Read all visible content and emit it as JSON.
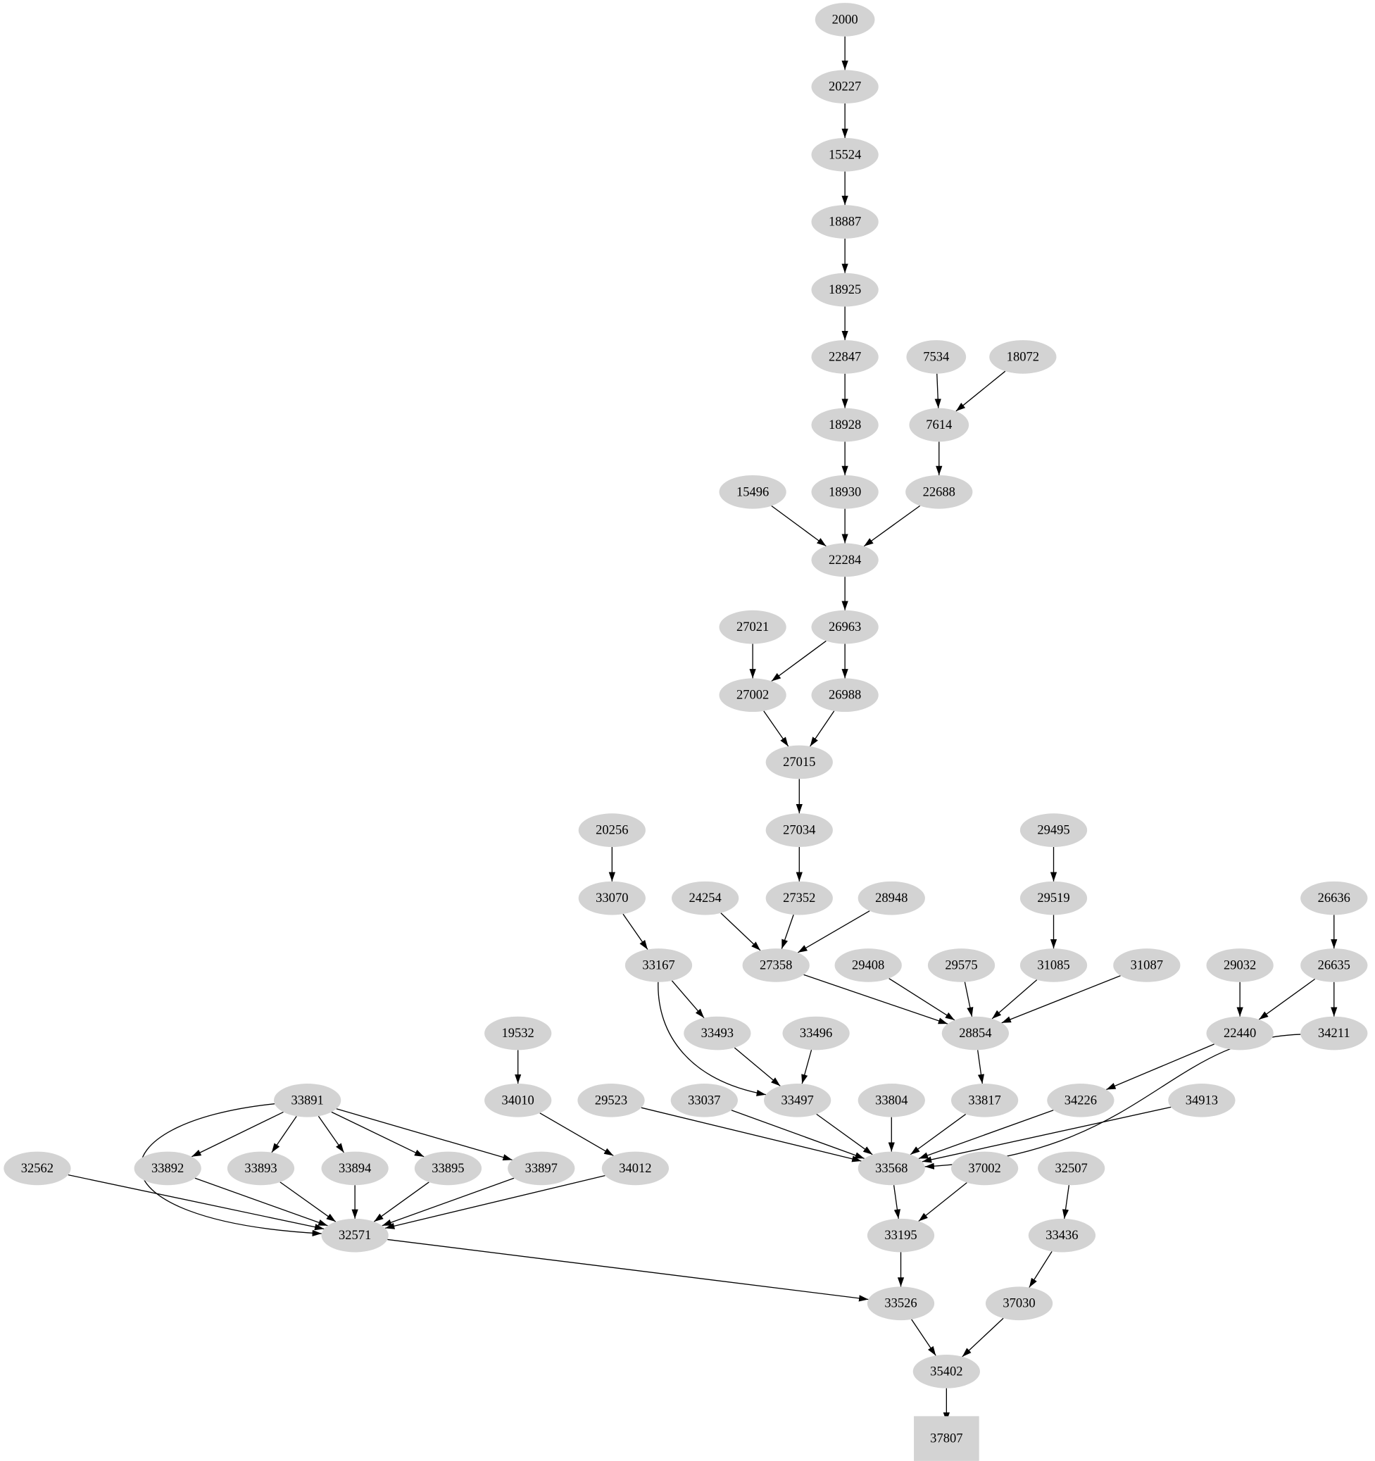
{
  "graph": {
    "node_color": "#d3d3d3",
    "edge_color": "#000000",
    "nodes": [
      {
        "id": "2000",
        "shape": "ellipse"
      },
      {
        "id": "20227",
        "shape": "ellipse"
      },
      {
        "id": "15524",
        "shape": "ellipse"
      },
      {
        "id": "18887",
        "shape": "ellipse"
      },
      {
        "id": "18925",
        "shape": "ellipse"
      },
      {
        "id": "22847",
        "shape": "ellipse"
      },
      {
        "id": "7534",
        "shape": "ellipse"
      },
      {
        "id": "18072",
        "shape": "ellipse"
      },
      {
        "id": "18928",
        "shape": "ellipse"
      },
      {
        "id": "7614",
        "shape": "ellipse"
      },
      {
        "id": "15496",
        "shape": "ellipse"
      },
      {
        "id": "18930",
        "shape": "ellipse"
      },
      {
        "id": "22688",
        "shape": "ellipse"
      },
      {
        "id": "22284",
        "shape": "ellipse"
      },
      {
        "id": "27021",
        "shape": "ellipse"
      },
      {
        "id": "26963",
        "shape": "ellipse"
      },
      {
        "id": "27002",
        "shape": "ellipse"
      },
      {
        "id": "26988",
        "shape": "ellipse"
      },
      {
        "id": "27015",
        "shape": "ellipse"
      },
      {
        "id": "20256",
        "shape": "ellipse"
      },
      {
        "id": "27034",
        "shape": "ellipse"
      },
      {
        "id": "29495",
        "shape": "ellipse"
      },
      {
        "id": "33070",
        "shape": "ellipse"
      },
      {
        "id": "24254",
        "shape": "ellipse"
      },
      {
        "id": "27352",
        "shape": "ellipse"
      },
      {
        "id": "28948",
        "shape": "ellipse"
      },
      {
        "id": "29519",
        "shape": "ellipse"
      },
      {
        "id": "26636",
        "shape": "ellipse"
      },
      {
        "id": "33167",
        "shape": "ellipse"
      },
      {
        "id": "27358",
        "shape": "ellipse"
      },
      {
        "id": "29408",
        "shape": "ellipse"
      },
      {
        "id": "29575",
        "shape": "ellipse"
      },
      {
        "id": "31085",
        "shape": "ellipse"
      },
      {
        "id": "31087",
        "shape": "ellipse"
      },
      {
        "id": "29032",
        "shape": "ellipse"
      },
      {
        "id": "26635",
        "shape": "ellipse"
      },
      {
        "id": "19532",
        "shape": "ellipse"
      },
      {
        "id": "33493",
        "shape": "ellipse"
      },
      {
        "id": "33496",
        "shape": "ellipse"
      },
      {
        "id": "28854",
        "shape": "ellipse"
      },
      {
        "id": "22440",
        "shape": "ellipse"
      },
      {
        "id": "34211",
        "shape": "ellipse"
      },
      {
        "id": "33891",
        "shape": "ellipse"
      },
      {
        "id": "34010",
        "shape": "ellipse"
      },
      {
        "id": "29523",
        "shape": "ellipse"
      },
      {
        "id": "33037",
        "shape": "ellipse"
      },
      {
        "id": "33497",
        "shape": "ellipse"
      },
      {
        "id": "33804",
        "shape": "ellipse"
      },
      {
        "id": "33817",
        "shape": "ellipse"
      },
      {
        "id": "34226",
        "shape": "ellipse"
      },
      {
        "id": "34913",
        "shape": "ellipse"
      },
      {
        "id": "32562",
        "shape": "ellipse"
      },
      {
        "id": "33892",
        "shape": "ellipse"
      },
      {
        "id": "33893",
        "shape": "ellipse"
      },
      {
        "id": "33894",
        "shape": "ellipse"
      },
      {
        "id": "33895",
        "shape": "ellipse"
      },
      {
        "id": "33897",
        "shape": "ellipse"
      },
      {
        "id": "34012",
        "shape": "ellipse"
      },
      {
        "id": "33568",
        "shape": "ellipse"
      },
      {
        "id": "37002",
        "shape": "ellipse"
      },
      {
        "id": "32507",
        "shape": "ellipse"
      },
      {
        "id": "32571",
        "shape": "ellipse"
      },
      {
        "id": "33195",
        "shape": "ellipse"
      },
      {
        "id": "33436",
        "shape": "ellipse"
      },
      {
        "id": "33526",
        "shape": "ellipse"
      },
      {
        "id": "37030",
        "shape": "ellipse"
      },
      {
        "id": "35402",
        "shape": "ellipse"
      },
      {
        "id": "37807",
        "shape": "box"
      }
    ],
    "edges": [
      [
        "2000",
        "20227"
      ],
      [
        "20227",
        "15524"
      ],
      [
        "15524",
        "18887"
      ],
      [
        "18887",
        "18925"
      ],
      [
        "18925",
        "22847"
      ],
      [
        "22847",
        "18928"
      ],
      [
        "18928",
        "18930"
      ],
      [
        "7534",
        "7614"
      ],
      [
        "18072",
        "7614"
      ],
      [
        "7614",
        "22688"
      ],
      [
        "15496",
        "22284"
      ],
      [
        "18930",
        "22284"
      ],
      [
        "22688",
        "22284"
      ],
      [
        "22284",
        "26963"
      ],
      [
        "27021",
        "27002"
      ],
      [
        "26963",
        "27002"
      ],
      [
        "26963",
        "26988"
      ],
      [
        "27002",
        "27015"
      ],
      [
        "26988",
        "27015"
      ],
      [
        "27015",
        "27034"
      ],
      [
        "27034",
        "27352"
      ],
      [
        "20256",
        "33070"
      ],
      [
        "33070",
        "33167"
      ],
      [
        "24254",
        "27358"
      ],
      [
        "27352",
        "27358"
      ],
      [
        "28948",
        "27358"
      ],
      [
        "29495",
        "29519"
      ],
      [
        "29519",
        "31085"
      ],
      [
        "26636",
        "26635"
      ],
      [
        "27358",
        "28854"
      ],
      [
        "29408",
        "28854"
      ],
      [
        "29575",
        "28854"
      ],
      [
        "31085",
        "28854"
      ],
      [
        "31087",
        "28854"
      ],
      [
        "29032",
        "22440"
      ],
      [
        "26635",
        "22440"
      ],
      [
        "26635",
        "34211"
      ],
      [
        "33167",
        "33493"
      ],
      [
        "33167",
        "33497"
      ],
      [
        "33493",
        "33497"
      ],
      [
        "33496",
        "33497"
      ],
      [
        "19532",
        "34010"
      ],
      [
        "28854",
        "33817"
      ],
      [
        "22440",
        "34226"
      ],
      [
        "34211",
        "33568"
      ],
      [
        "29523",
        "33568"
      ],
      [
        "33037",
        "33568"
      ],
      [
        "33497",
        "33568"
      ],
      [
        "33804",
        "33568"
      ],
      [
        "33817",
        "33568"
      ],
      [
        "34226",
        "33568"
      ],
      [
        "34913",
        "33568"
      ],
      [
        "33891",
        "33892"
      ],
      [
        "33891",
        "33893"
      ],
      [
        "33891",
        "33894"
      ],
      [
        "33891",
        "33895"
      ],
      [
        "33891",
        "33897"
      ],
      [
        "33891",
        "32571"
      ],
      [
        "34010",
        "34012"
      ],
      [
        "32562",
        "32571"
      ],
      [
        "33892",
        "32571"
      ],
      [
        "33893",
        "32571"
      ],
      [
        "33894",
        "32571"
      ],
      [
        "33895",
        "32571"
      ],
      [
        "33897",
        "32571"
      ],
      [
        "34012",
        "32571"
      ],
      [
        "33568",
        "33195"
      ],
      [
        "37002",
        "33195"
      ],
      [
        "32507",
        "33436"
      ],
      [
        "32571",
        "33526"
      ],
      [
        "33195",
        "33526"
      ],
      [
        "33436",
        "37030"
      ],
      [
        "33526",
        "35402"
      ],
      [
        "37030",
        "35402"
      ],
      [
        "35402",
        "37807"
      ]
    ]
  }
}
